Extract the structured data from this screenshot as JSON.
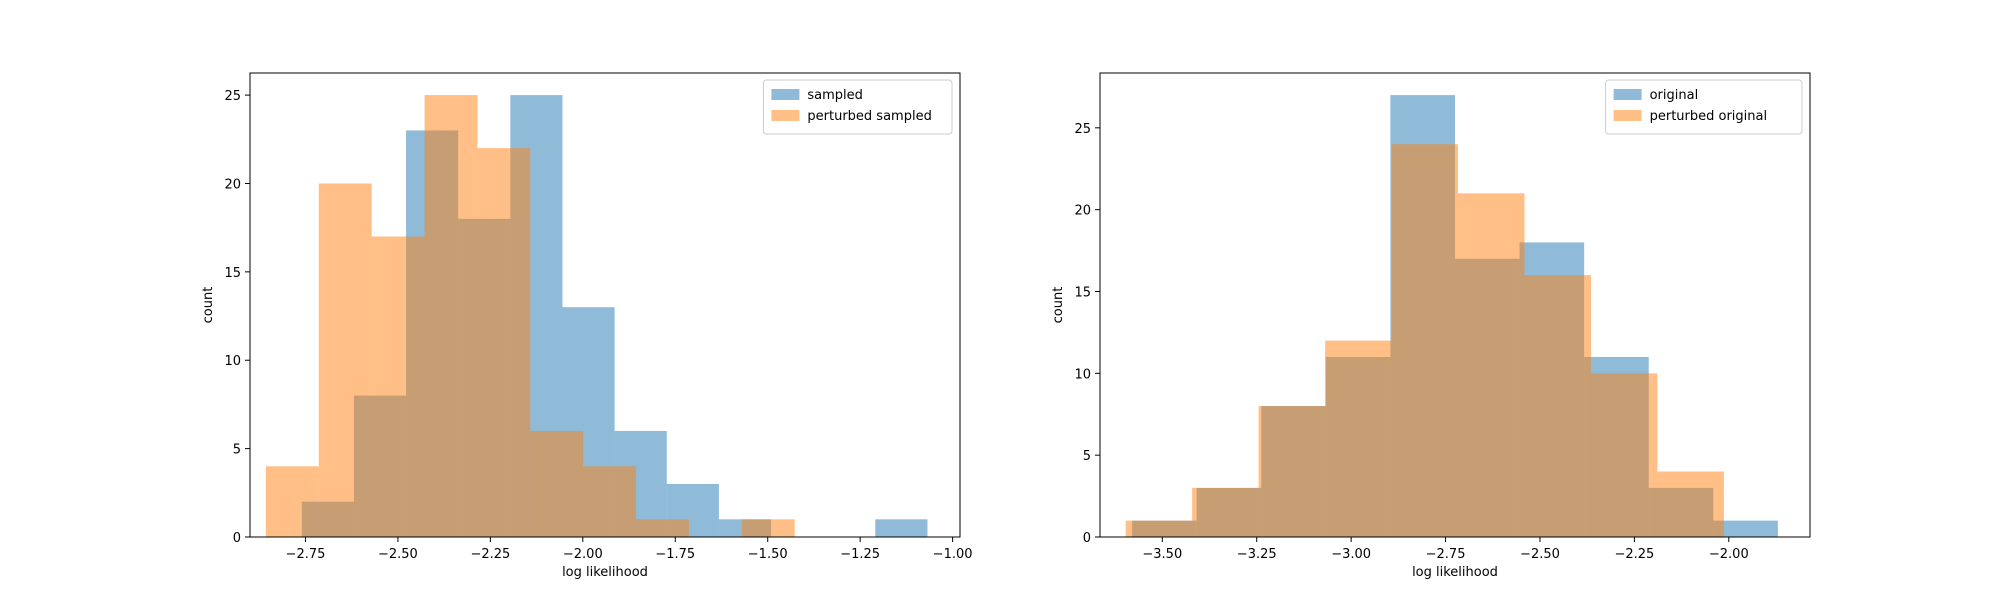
{
  "chart_data": [
    {
      "type": "histogram",
      "xlabel": "log likelihood",
      "ylabel": "count",
      "xlim": [
        -2.9,
        -0.98
      ],
      "ylim": [
        0,
        26.25
      ],
      "xticks": [
        -2.75,
        -2.5,
        -2.25,
        -2.0,
        -1.75,
        -1.5,
        -1.25,
        -1.0
      ],
      "xtick_labels": [
        "−2.75",
        "−2.50",
        "−2.25",
        "−2.00",
        "−1.75",
        "−1.50",
        "−1.25",
        "−1.00"
      ],
      "yticks": [
        0,
        5,
        10,
        15,
        20,
        25
      ],
      "ytick_labels": [
        "0",
        "5",
        "10",
        "15",
        "20",
        "25"
      ],
      "legend_position": "upper right",
      "series": [
        {
          "name": "sampled",
          "color": "#1f77b4",
          "alpha": 0.5,
          "bin_edges": [
            -2.76,
            -2.619,
            -2.478,
            -2.337,
            -2.196,
            -2.055,
            -1.914,
            -1.773,
            -1.632,
            -1.491,
            -1.35,
            -1.209,
            -1.068
          ],
          "counts": [
            2,
            8,
            23,
            18,
            25,
            13,
            6,
            3,
            1,
            0,
            0,
            1
          ]
        },
        {
          "name": "perturbed sampled",
          "color": "#ff7f0e",
          "alpha": 0.5,
          "bin_edges": [
            -2.857,
            -2.714,
            -2.571,
            -2.428,
            -2.285,
            -2.142,
            -1.999,
            -1.856,
            -1.713,
            -1.57,
            -1.427
          ],
          "counts": [
            4,
            20,
            17,
            25,
            22,
            6,
            4,
            1,
            0,
            1
          ]
        }
      ]
    },
    {
      "type": "histogram",
      "xlabel": "log likelihood",
      "ylabel": "count",
      "xlim": [
        -3.665,
        -1.785
      ],
      "ylim": [
        0,
        28.35
      ],
      "xticks": [
        -3.5,
        -3.25,
        -3.0,
        -2.75,
        -2.5,
        -2.25,
        -2.0
      ],
      "xtick_labels": [
        "−3.50",
        "−3.25",
        "−3.00",
        "−2.75",
        "−2.50",
        "−2.25",
        "−2.00"
      ],
      "yticks": [
        0,
        5,
        10,
        15,
        20,
        25
      ],
      "ytick_labels": [
        "0",
        "5",
        "10",
        "15",
        "20",
        "25"
      ],
      "legend_position": "upper right",
      "series": [
        {
          "name": "original",
          "color": "#1f77b4",
          "alpha": 0.5,
          "bin_edges": [
            -3.58,
            -3.409,
            -3.238,
            -3.067,
            -2.896,
            -2.725,
            -2.554,
            -2.383,
            -2.212,
            -2.041,
            -1.87
          ],
          "counts": [
            1,
            3,
            8,
            11,
            27,
            17,
            18,
            11,
            3,
            1
          ]
        },
        {
          "name": "perturbed original",
          "color": "#ff7f0e",
          "alpha": 0.5,
          "bin_edges": [
            -3.597,
            -3.421,
            -3.245,
            -3.069,
            -2.893,
            -2.717,
            -2.541,
            -2.365,
            -2.189,
            -2.013
          ],
          "counts": [
            1,
            3,
            8,
            12,
            24,
            21,
            16,
            10,
            4
          ]
        }
      ]
    }
  ]
}
